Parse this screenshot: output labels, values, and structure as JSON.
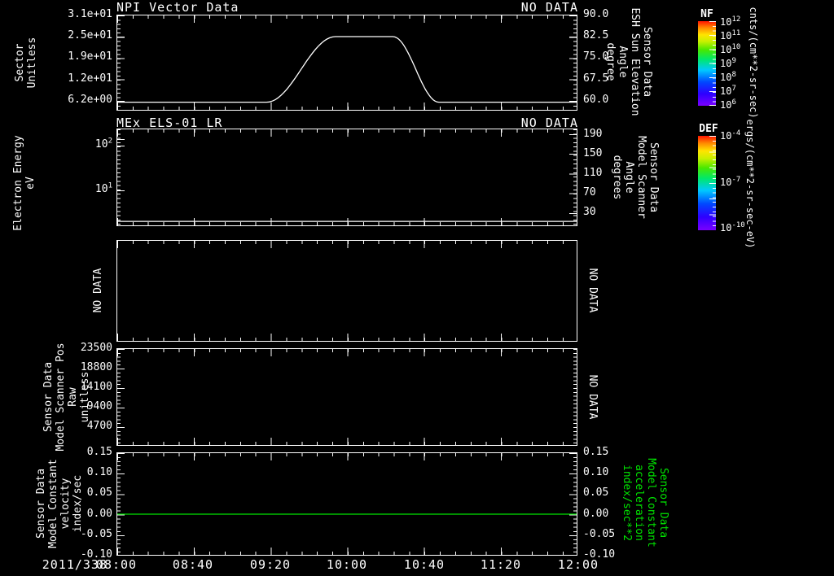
{
  "colors": {
    "fg": "#ffffff",
    "bg": "#000000",
    "accent_green": "#00e400"
  },
  "panels": {
    "p1": {
      "title": "NPI Vector Data",
      "no_data": "NO DATA",
      "ylabel_left_lines": [
        "Sector",
        "Unitless"
      ],
      "yticks_left": [
        "3.1e+01",
        "2.5e+01",
        "1.9e+01",
        "1.2e+01",
        "6.2e+00"
      ],
      "yticks_right": [
        "90.0",
        "82.5",
        "75.0",
        "67.5",
        "60.0"
      ],
      "ylabel_right_lines": [
        "Sensor Data",
        "ESH Sun Elevation",
        "Angle",
        "degree"
      ]
    },
    "p2": {
      "title": "MEx ELS-01 LR",
      "no_data": "NO DATA",
      "ylabel_left_lines": [
        "Electron Energy",
        "eV"
      ],
      "yticks_left": [
        {
          "base": "10",
          "exp": "2"
        },
        {
          "base": "10",
          "exp": "1"
        }
      ],
      "yticks_right": [
        "190",
        "150",
        "110",
        "70",
        "30"
      ],
      "ylabel_right_lines": [
        "Sensor Data",
        "Model Scanner",
        "Angle",
        "degrees"
      ]
    },
    "p3": {
      "no_data_left": "NO DATA",
      "no_data_right": "NO DATA"
    },
    "p4": {
      "ylabel_left_lines": [
        "Sensor Data",
        "Model Scanner Pos",
        "Raw",
        "unitless"
      ],
      "yticks_left": [
        "23500",
        "18800",
        "14100",
        "9400",
        "4700"
      ],
      "no_data_right": "NO DATA"
    },
    "p5": {
      "ylabel_left_lines": [
        "Sensor Data",
        "Model Constant",
        "velocity",
        "index/sec"
      ],
      "yticks_left": [
        "0.15",
        "0.10",
        "0.05",
        "0.00",
        "-0.05",
        "-0.10"
      ],
      "yticks_right": [
        "0.15",
        "0.10",
        "0.05",
        "0.00",
        "-0.05",
        "-0.10"
      ],
      "ylabel_right_lines": [
        "Sensor Data",
        "Model Constant",
        "acceleration",
        "index/sec**2"
      ]
    }
  },
  "xaxis": {
    "date": "2011/338",
    "ticks": [
      "08:00",
      "08:40",
      "09:20",
      "10:00",
      "10:40",
      "11:20",
      "12:00"
    ]
  },
  "colorbars": [
    {
      "title": "NF",
      "units": "cnts/(cm**2-sr-sec)",
      "ticks": [
        {
          "base": "10",
          "exp": "12"
        },
        {
          "base": "10",
          "exp": "11"
        },
        {
          "base": "10",
          "exp": "10"
        },
        {
          "base": "10",
          "exp": "9"
        },
        {
          "base": "10",
          "exp": "8"
        },
        {
          "base": "10",
          "exp": "7"
        },
        {
          "base": "10",
          "exp": "6"
        }
      ]
    },
    {
      "title": "DEF",
      "units": "ergs/(cm**2-sr-sec-eV)",
      "ticks": [
        {
          "base": "10",
          "exp": "-4"
        },
        {
          "base": "10",
          "exp": "-7"
        },
        {
          "base": "10",
          "exp": "-10"
        }
      ]
    }
  ],
  "chart_data": [
    {
      "id": "p1",
      "type": "line",
      "title": "NPI Vector Data",
      "series_name": "Sensor Data ESH Sun Elevation Angle",
      "ylabel": "degree",
      "x_unit": "minutes after 2011/338 08:00",
      "x_range": [
        0,
        240
      ],
      "y_scale": "linear",
      "y_range": [
        56.6,
        90.0
      ],
      "yticks": [
        90.0,
        82.5,
        75.0,
        67.5,
        60.0
      ],
      "points": [
        [
          0,
          59.3
        ],
        [
          78,
          59.3
        ],
        [
          114,
          82.5
        ],
        [
          144,
          82.5
        ],
        [
          168,
          59.3
        ],
        [
          240,
          59.3
        ]
      ],
      "smooth": true,
      "color": "#ffffff",
      "note": "trapezoid: flat 59.3 deg, smooth rise 09:18-09:54, plateau 82.5 deg until 10:24, smooth fall to 59.3 by 10:48"
    },
    {
      "id": "p2",
      "type": "line",
      "title": "MEx ELS-01 LR",
      "series_name": "Electron Energy",
      "ylabel": "eV",
      "x_range": [
        0,
        240
      ],
      "y_scale": "log",
      "y_range": [
        1.585,
        231
      ],
      "yticks": [
        100,
        10
      ],
      "points": [
        [
          0,
          1.95
        ],
        [
          240,
          1.95
        ]
      ],
      "smooth": false,
      "color": "#ffffff",
      "note": "constant low-energy line near bottom of log panel; spectrogram area otherwise empty (NO DATA)"
    },
    {
      "id": "p5",
      "type": "line",
      "series_name": "Sensor Data Model Constant velocity / acceleration",
      "ylabel": "index/sec",
      "x_range": [
        0,
        240
      ],
      "y_scale": "linear",
      "y_range": [
        -0.1,
        0.15
      ],
      "yticks": [
        0.15,
        0.1,
        0.05,
        0.0,
        -0.05,
        -0.1
      ],
      "points": [
        [
          0,
          0.0
        ],
        [
          240,
          0.0
        ]
      ],
      "smooth": false,
      "color": "#00e400",
      "note": "constant green zero line"
    }
  ]
}
